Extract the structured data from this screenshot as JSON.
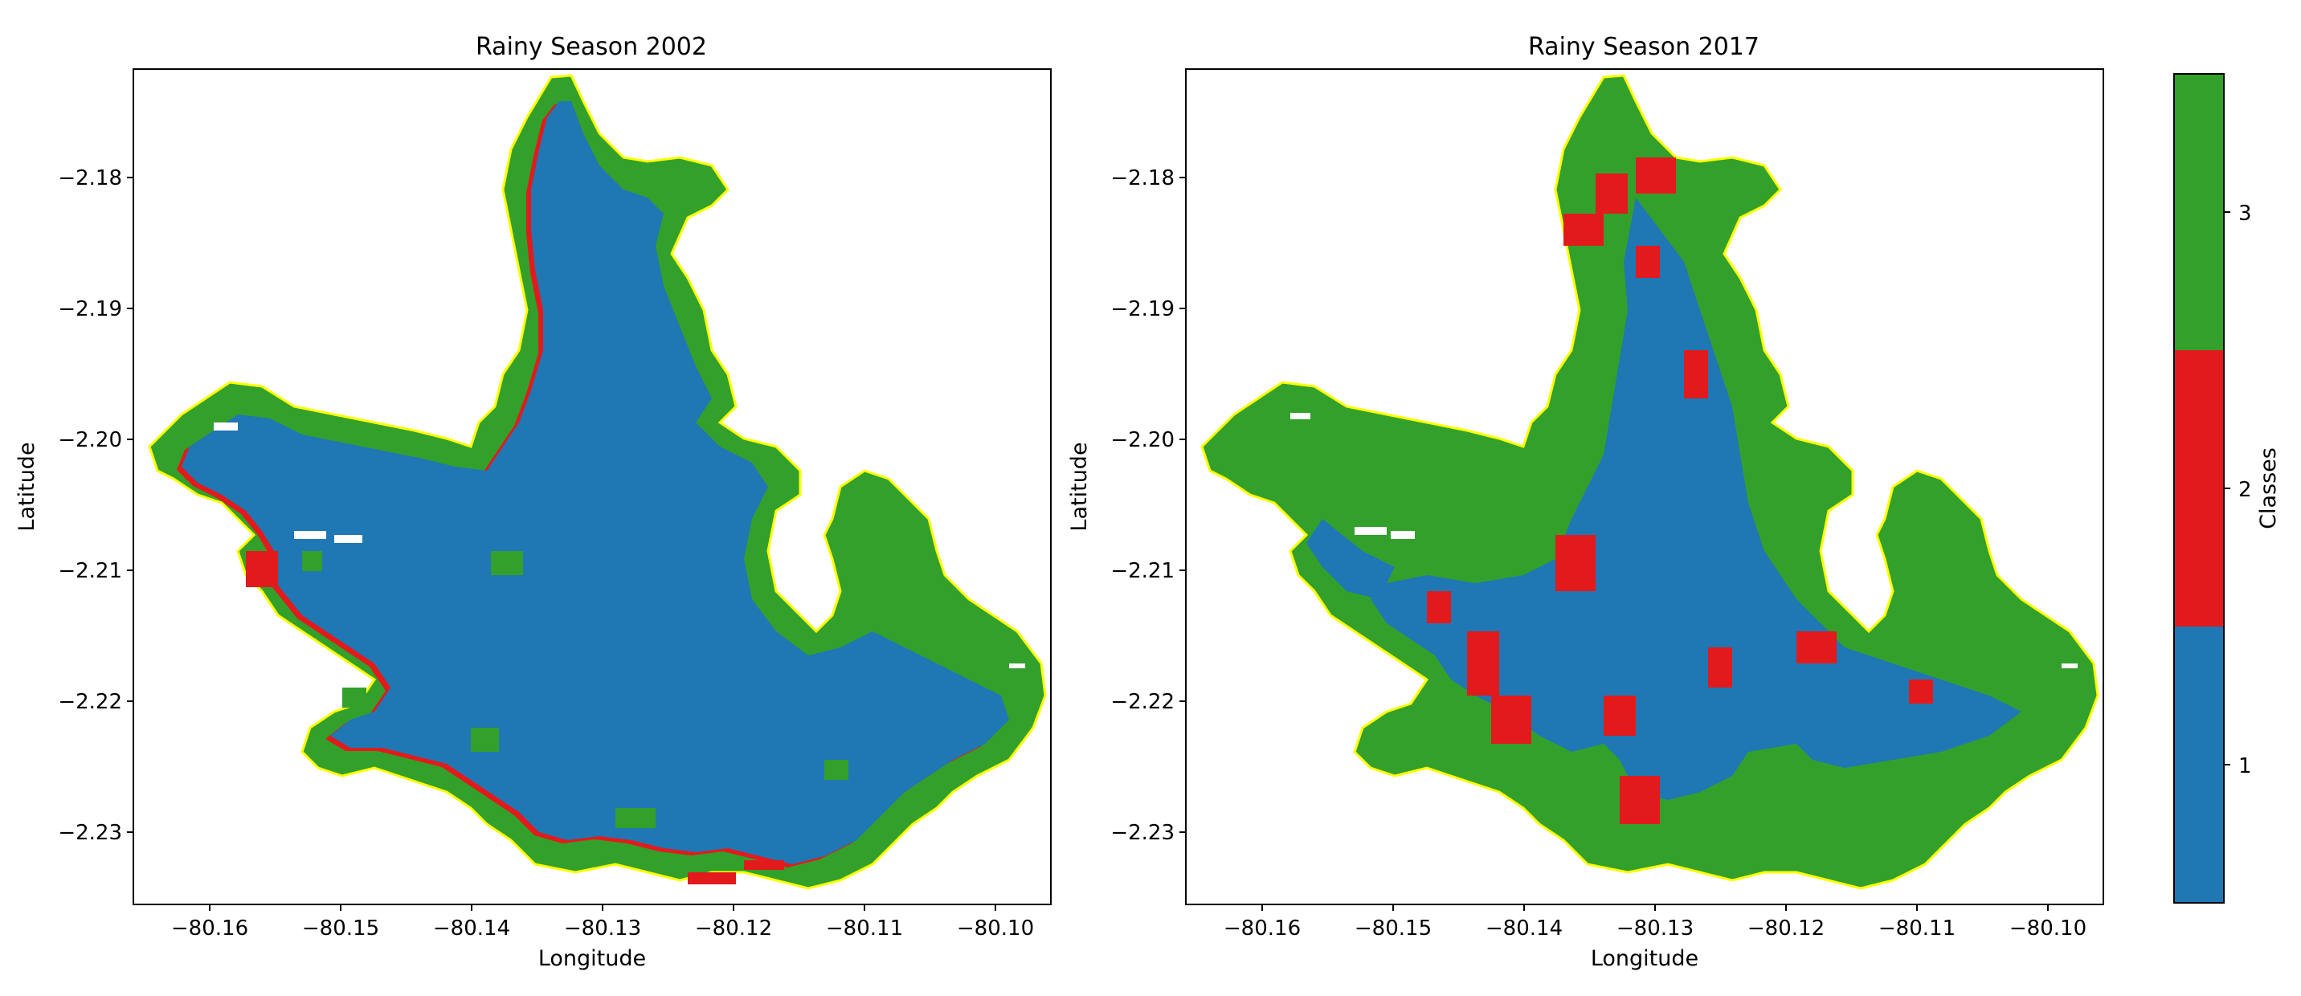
{
  "figure": {
    "panels": [
      {
        "title": "Rainy Season 2002",
        "xlabel": "Longitude",
        "ylabel": "Latitude"
      },
      {
        "title": "Rainy Season 2017",
        "xlabel": "Longitude",
        "ylabel": "Latitude"
      }
    ],
    "x_ticks": [
      "−80.16",
      "−80.15",
      "−80.14",
      "−80.13",
      "−80.12",
      "−80.11",
      "−80.10"
    ],
    "y_ticks": [
      "−2.18",
      "−2.19",
      "−2.20",
      "−2.21",
      "−2.22",
      "−2.23"
    ],
    "colorbar": {
      "label": "Classes",
      "classes": [
        {
          "label": "1",
          "color": "#1f77b4"
        },
        {
          "label": "2",
          "color": "#e31a1c"
        },
        {
          "label": "3",
          "color": "#33a02c"
        }
      ]
    },
    "outline_color": "#ffff00",
    "nodata_color": "#ffffff"
  }
}
